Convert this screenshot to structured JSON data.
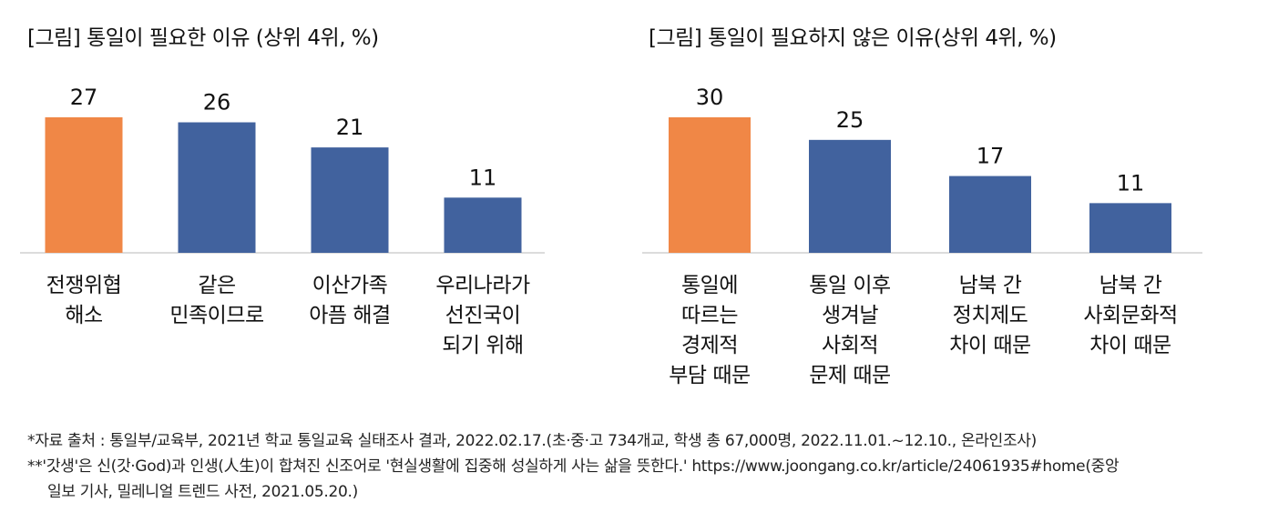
{
  "chart_data": [
    {
      "type": "bar",
      "title": "[그림] 통일이 필요한 이유 (상위 4위, %)",
      "categories": [
        [
          "전쟁위협",
          "해소"
        ],
        [
          "같은",
          "민족이므로"
        ],
        [
          "이산가족",
          "아픔 해결"
        ],
        [
          "우리나라가",
          "선진국이",
          "되기 위해"
        ]
      ],
      "values": [
        27,
        26,
        21,
        11
      ],
      "value_labels": [
        "27",
        "26",
        "21",
        "11"
      ],
      "colors": [
        "#F08746",
        "#41629E",
        "#41629E",
        "#41629E"
      ],
      "ylim": [
        0,
        27
      ]
    },
    {
      "type": "bar",
      "title": "[그림] 통일이 필요하지 않은 이유(상위 4위, %)",
      "categories": [
        [
          "통일에",
          "따르는",
          "경제적",
          "부담 때문"
        ],
        [
          "통일 이후",
          "생겨날",
          "사회적",
          "문제 때문"
        ],
        [
          "남북 간",
          "정치제도",
          "차이 때문"
        ],
        [
          "남북 간",
          "사회문화적",
          "차이 때문"
        ]
      ],
      "values": [
        30,
        25,
        17,
        11
      ],
      "value_labels": [
        "30",
        "25",
        "17",
        "11"
      ],
      "colors": [
        "#F08746",
        "#41629E",
        "#41629E",
        "#41629E"
      ],
      "ylim": [
        0,
        30
      ]
    }
  ],
  "notes": {
    "line1": "*자료 출처 : 통일부/교육부, 2021년 학교 통일교육 실태조사 결과, 2022.02.17.(초·중·고 734개교, 학생 총 67,000명, 2022.11.01.~12.10., 온라인조사)",
    "line2": "**'갓생'은 신(갓·God)과 인생(人生)이 합쳐진 신조어로 '현실생활에 집중해 성실하게 사는 삶을 뜻한다.' https://www.joongang.co.kr/article/24061935#home(중앙",
    "line3": "일보 기사, 밀레니얼 트렌드 사전, 2021.05.20.)"
  }
}
